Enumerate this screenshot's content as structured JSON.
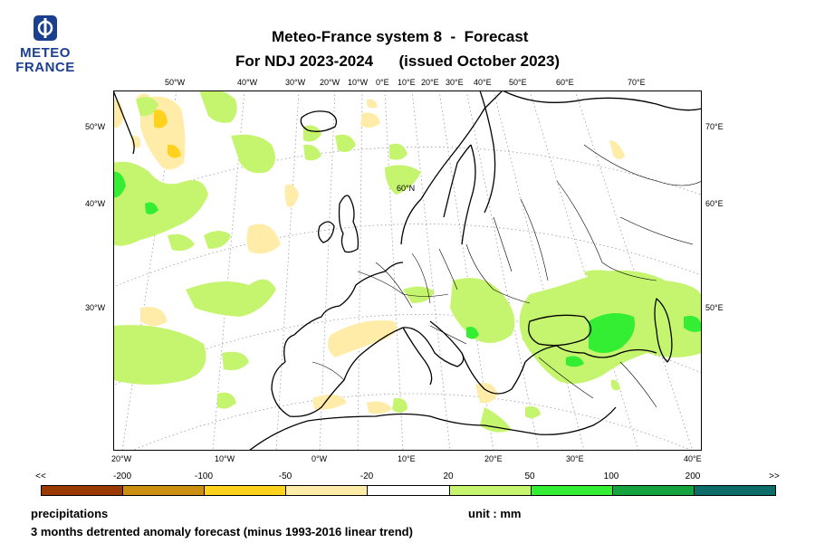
{
  "logo": {
    "line1": "METEO",
    "line2": "FRANCE"
  },
  "title": {
    "line1": "Meteo-France system 8  -  Forecast",
    "line2": "For NDJ 2023-2024      (issued October 2023)"
  },
  "map": {
    "top_labels": [
      "50°W",
      "40°W",
      "30°W",
      "20°W",
      "10°W",
      "0°E",
      "10°E",
      "20°E",
      "30°E",
      "40°E",
      "50°E",
      "60°E",
      "70°E"
    ],
    "left_labels": [
      "50°W",
      "40°W",
      "30°W"
    ],
    "right_labels": [
      "70°E",
      "60°E",
      "50°E"
    ],
    "bottom_labels": [
      "20°W",
      "10°W",
      "0°W",
      "10°E",
      "20°E",
      "30°E",
      "40°E"
    ],
    "inner_label": "60°N"
  },
  "colorbar": {
    "ticks": [
      "<<",
      "-200",
      "-100",
      "-50",
      "-20",
      "20",
      "50",
      "100",
      "200",
      ">>"
    ],
    "colors": [
      "#9a3a00",
      "#cc8f10",
      "#ffd21e",
      "#ffeca8",
      "#ffffff",
      "#c5f56e",
      "#33ee33",
      "#14a33e",
      "#0b6c6a"
    ]
  },
  "footer": {
    "variable": "precipitations",
    "unit": "unit : mm",
    "description": "3 months detrented anomaly forecast (minus 1993-2016 linear trend)"
  }
}
